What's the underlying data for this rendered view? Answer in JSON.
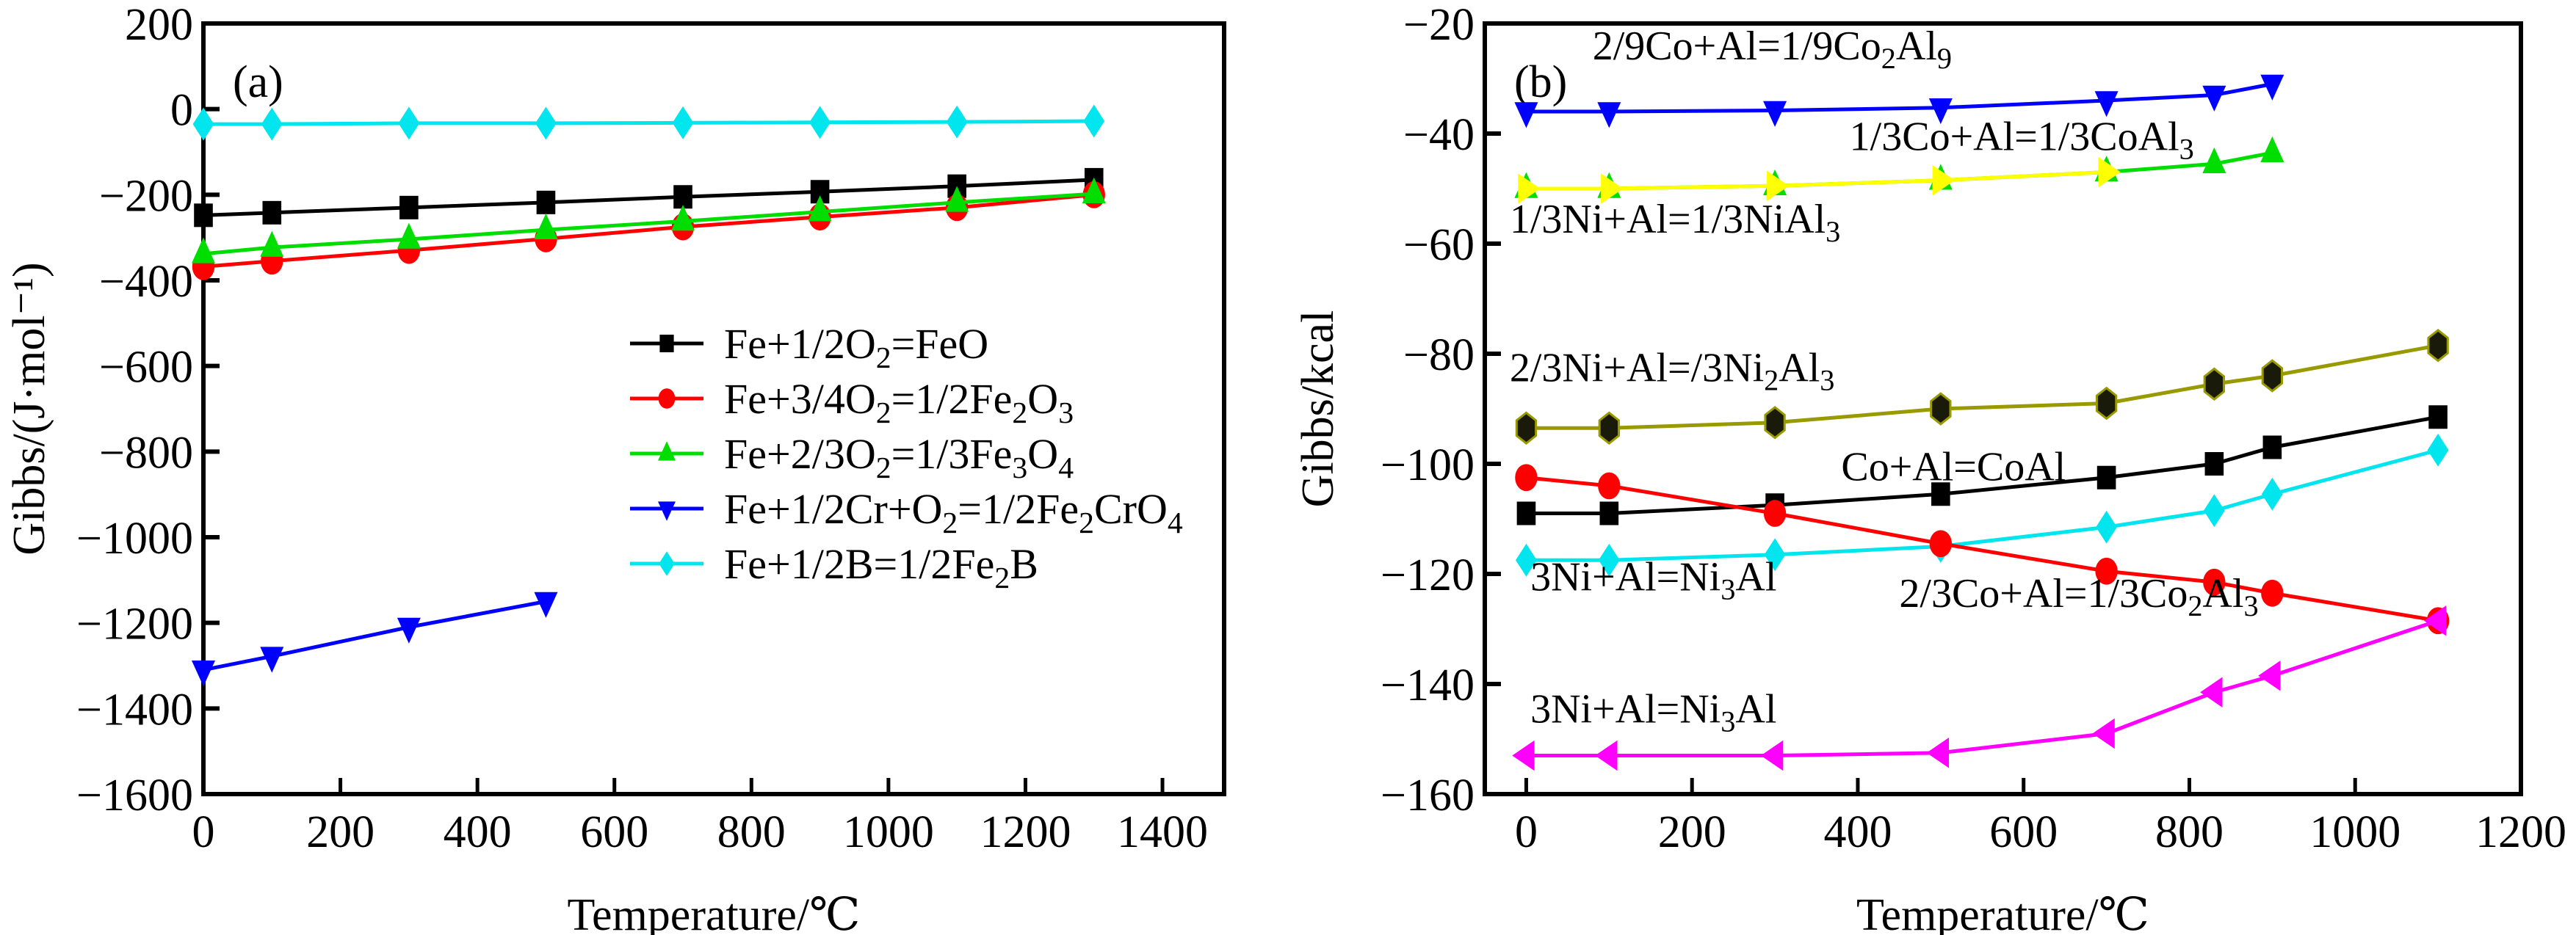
{
  "chart_data": [
    {
      "type": "line",
      "panel": "(a)",
      "title": "",
      "xlabel": "Temperature/℃",
      "ylabel": "Gibbs/(J·mol⁻¹)",
      "xlim": [
        0,
        1490
      ],
      "ylim": [
        -1600,
        200
      ],
      "xticks": [
        0,
        200,
        400,
        600,
        800,
        1000,
        1200,
        1400
      ],
      "yticks": [
        200,
        0,
        -200,
        -400,
        -600,
        -800,
        -1000,
        -1200,
        -1400,
        -1600
      ],
      "grid": false,
      "legend_position": "center-right",
      "series": [
        {
          "name": "Fe+1/2O2=FeO",
          "label_parts": [
            [
              "Fe+1/2O",
              ""
            ],
            [
              "2",
              "sub"
            ],
            [
              "=FeO",
              ""
            ]
          ],
          "color": "#000000",
          "marker": "square",
          "x": [
            0,
            100,
            300,
            500,
            700,
            900,
            1100,
            1300
          ],
          "y": [
            -248,
            -242,
            -230,
            -218,
            -205,
            -193,
            -180,
            -165
          ]
        },
        {
          "name": "Fe+3/4O2=1/2Fe2O3",
          "label_parts": [
            [
              "Fe+3/4O",
              ""
            ],
            [
              "2",
              "sub"
            ],
            [
              "=1/2Fe",
              ""
            ],
            [
              "2",
              "sub"
            ],
            [
              "O",
              ""
            ],
            [
              "3",
              "sub"
            ]
          ],
          "color": "#ff0000",
          "marker": "circle",
          "x": [
            0,
            100,
            300,
            500,
            700,
            900,
            1100,
            1300
          ],
          "y": [
            -368,
            -355,
            -330,
            -303,
            -275,
            -252,
            -230,
            -200
          ]
        },
        {
          "name": "Fe+2/3O2=1/3Fe3O4",
          "label_parts": [
            [
              "Fe+2/3O",
              ""
            ],
            [
              "2",
              "sub"
            ],
            [
              "=1/3Fe",
              ""
            ],
            [
              "3",
              "sub"
            ],
            [
              "O",
              ""
            ],
            [
              "4",
              "sub"
            ]
          ],
          "color": "#00dd00",
          "marker": "triangle-up",
          "x": [
            0,
            100,
            300,
            500,
            700,
            900,
            1100,
            1300
          ],
          "y": [
            -338,
            -323,
            -304,
            -282,
            -262,
            -240,
            -218,
            -198
          ]
        },
        {
          "name": "Fe+1/2Cr+O2=1/2Fe2CrO4",
          "label_parts": [
            [
              "Fe+1/2Cr+O",
              ""
            ],
            [
              "2",
              "sub"
            ],
            [
              "=1/2Fe",
              ""
            ],
            [
              "2",
              "sub"
            ],
            [
              "CrO",
              ""
            ],
            [
              "4",
              "sub"
            ]
          ],
          "color": "#0000ff",
          "marker": "triangle-down",
          "x": [
            0,
            100,
            300,
            500
          ],
          "y": [
            -1310,
            -1278,
            -1210,
            -1150
          ]
        },
        {
          "name": "Fe+1/2B=1/2Fe2B",
          "label_parts": [
            [
              "Fe+1/2B=1/2Fe",
              ""
            ],
            [
              "2",
              "sub"
            ],
            [
              "B",
              ""
            ]
          ],
          "color": "#00e5ee",
          "marker": "diamond",
          "x": [
            0,
            100,
            300,
            500,
            700,
            900,
            1100,
            1300
          ],
          "y": [
            -35,
            -35,
            -33,
            -33,
            -32,
            -31,
            -30,
            -28
          ]
        }
      ]
    },
    {
      "type": "line",
      "panel": "(b)",
      "title": "",
      "xlabel": "Temperature/℃",
      "ylabel": "Gibbs/kcal",
      "xlim": [
        -50,
        1200
      ],
      "ylim": [
        -160,
        -20
      ],
      "xticks": [
        0,
        200,
        400,
        600,
        800,
        1000,
        1200
      ],
      "yticks": [
        -20,
        -40,
        -60,
        -80,
        -100,
        -120,
        -140,
        -160
      ],
      "grid": false,
      "legend_position": "none (inline annotations)",
      "series": [
        {
          "name": "2/9Co+Al=1/9Co2Al9",
          "color": "#0000ff",
          "marker": "triangle-down",
          "x": [
            0,
            100,
            300,
            500,
            700,
            830,
            900
          ],
          "y": [
            -36,
            -36,
            -35.8,
            -35.3,
            -34,
            -33,
            -31
          ]
        },
        {
          "name": "1/3Co+Al=1/3CoAl3",
          "color": "#00dd00",
          "marker": "triangle-up",
          "x": [
            0,
            100,
            300,
            500,
            700,
            830,
            900
          ],
          "y": [
            -50,
            -50,
            -49.5,
            -48.5,
            -47,
            -45.5,
            -43.5
          ]
        },
        {
          "name": "1/3Ni+Al=1/3NiAl3",
          "color": "#ffff00",
          "marker": "triangle-right",
          "x": [
            0,
            100,
            300,
            500,
            700
          ],
          "y": [
            -50,
            -50,
            -49.5,
            -48.5,
            -47
          ]
        },
        {
          "name": "2/3Ni+Al=/3Ni2Al3",
          "color": "#999900",
          "marker": "hexagon",
          "x": [
            0,
            100,
            300,
            500,
            700,
            830,
            900,
            1100
          ],
          "y": [
            -93.5,
            -93.5,
            -92.5,
            -90,
            -89,
            -85.5,
            -84,
            -78.5
          ]
        },
        {
          "name": "Co+Al=CoAl",
          "color": "#000000",
          "marker": "square",
          "x": [
            0,
            100,
            300,
            500,
            700,
            830,
            900,
            1100
          ],
          "y": [
            -109,
            -109,
            -107.5,
            -105.5,
            -102.5,
            -100,
            -97,
            -91.5
          ]
        },
        {
          "name": "3Ni+Al=Ni3Al (cyan)",
          "color": "#00e5ee",
          "marker": "diamond",
          "x": [
            0,
            100,
            300,
            500,
            700,
            830,
            900,
            1100
          ],
          "y": [
            -117.5,
            -117.5,
            -116.5,
            -115,
            -111.5,
            -108.5,
            -105.5,
            -97.5
          ]
        },
        {
          "name": "2/3Co+Al=1/3Co2Al3",
          "color": "#ff0000",
          "marker": "circle",
          "x": [
            0,
            100,
            300,
            500,
            700,
            830,
            900,
            1100
          ],
          "y": [
            -102.5,
            -104,
            -109,
            -114.5,
            -119.5,
            -121.5,
            -123.5,
            -128.5
          ]
        },
        {
          "name": "3Ni+Al=Ni3Al (magenta)",
          "color": "#ff00ff",
          "marker": "triangle-left",
          "x": [
            0,
            100,
            300,
            500,
            700,
            830,
            900,
            1100
          ],
          "y": [
            -153,
            -153,
            -153,
            -152.5,
            -149,
            -141.5,
            -138.5,
            -128.5
          ]
        }
      ],
      "annotations": [
        {
          "parts": [
            [
              "2/9Co+Al=1/9Co",
              ""
            ],
            [
              "2",
              "sub"
            ],
            [
              "Al",
              ""
            ],
            [
              "9",
              "sub"
            ]
          ],
          "x": 80,
          "y": -26.5
        },
        {
          "parts": [
            [
              "1/3Co+Al=1/3CoAl",
              ""
            ],
            [
              "3",
              "sub"
            ]
          ],
          "x": 390,
          "y": -43
        },
        {
          "parts": [
            [
              "1/3Ni+Al=1/3NiAl",
              ""
            ],
            [
              "3",
              "sub"
            ]
          ],
          "x": -20,
          "y": -58
        },
        {
          "parts": [
            [
              "2/3Ni+Al=/3Ni",
              ""
            ],
            [
              "2",
              "sub"
            ],
            [
              "Al",
              ""
            ],
            [
              "3",
              "sub"
            ]
          ],
          "x": -20,
          "y": -85
        },
        {
          "parts": [
            [
              "Co+Al=CoAl",
              ""
            ]
          ],
          "x": 380,
          "y": -103
        },
        {
          "parts": [
            [
              "3Ni+Al=Ni",
              ""
            ],
            [
              "3",
              "sub"
            ],
            [
              "Al",
              ""
            ]
          ],
          "x": 5,
          "y": -123
        },
        {
          "parts": [
            [
              "2/3Co+Al=1/3Co",
              ""
            ],
            [
              "2",
              "sub"
            ],
            [
              "Al",
              ""
            ],
            [
              "3",
              "sub"
            ]
          ],
          "x": 450,
          "y": -126
        },
        {
          "parts": [
            [
              "3Ni+Al=Ni",
              ""
            ],
            [
              "3",
              "sub"
            ],
            [
              "Al",
              ""
            ]
          ],
          "x": 5,
          "y": -147
        }
      ]
    }
  ]
}
